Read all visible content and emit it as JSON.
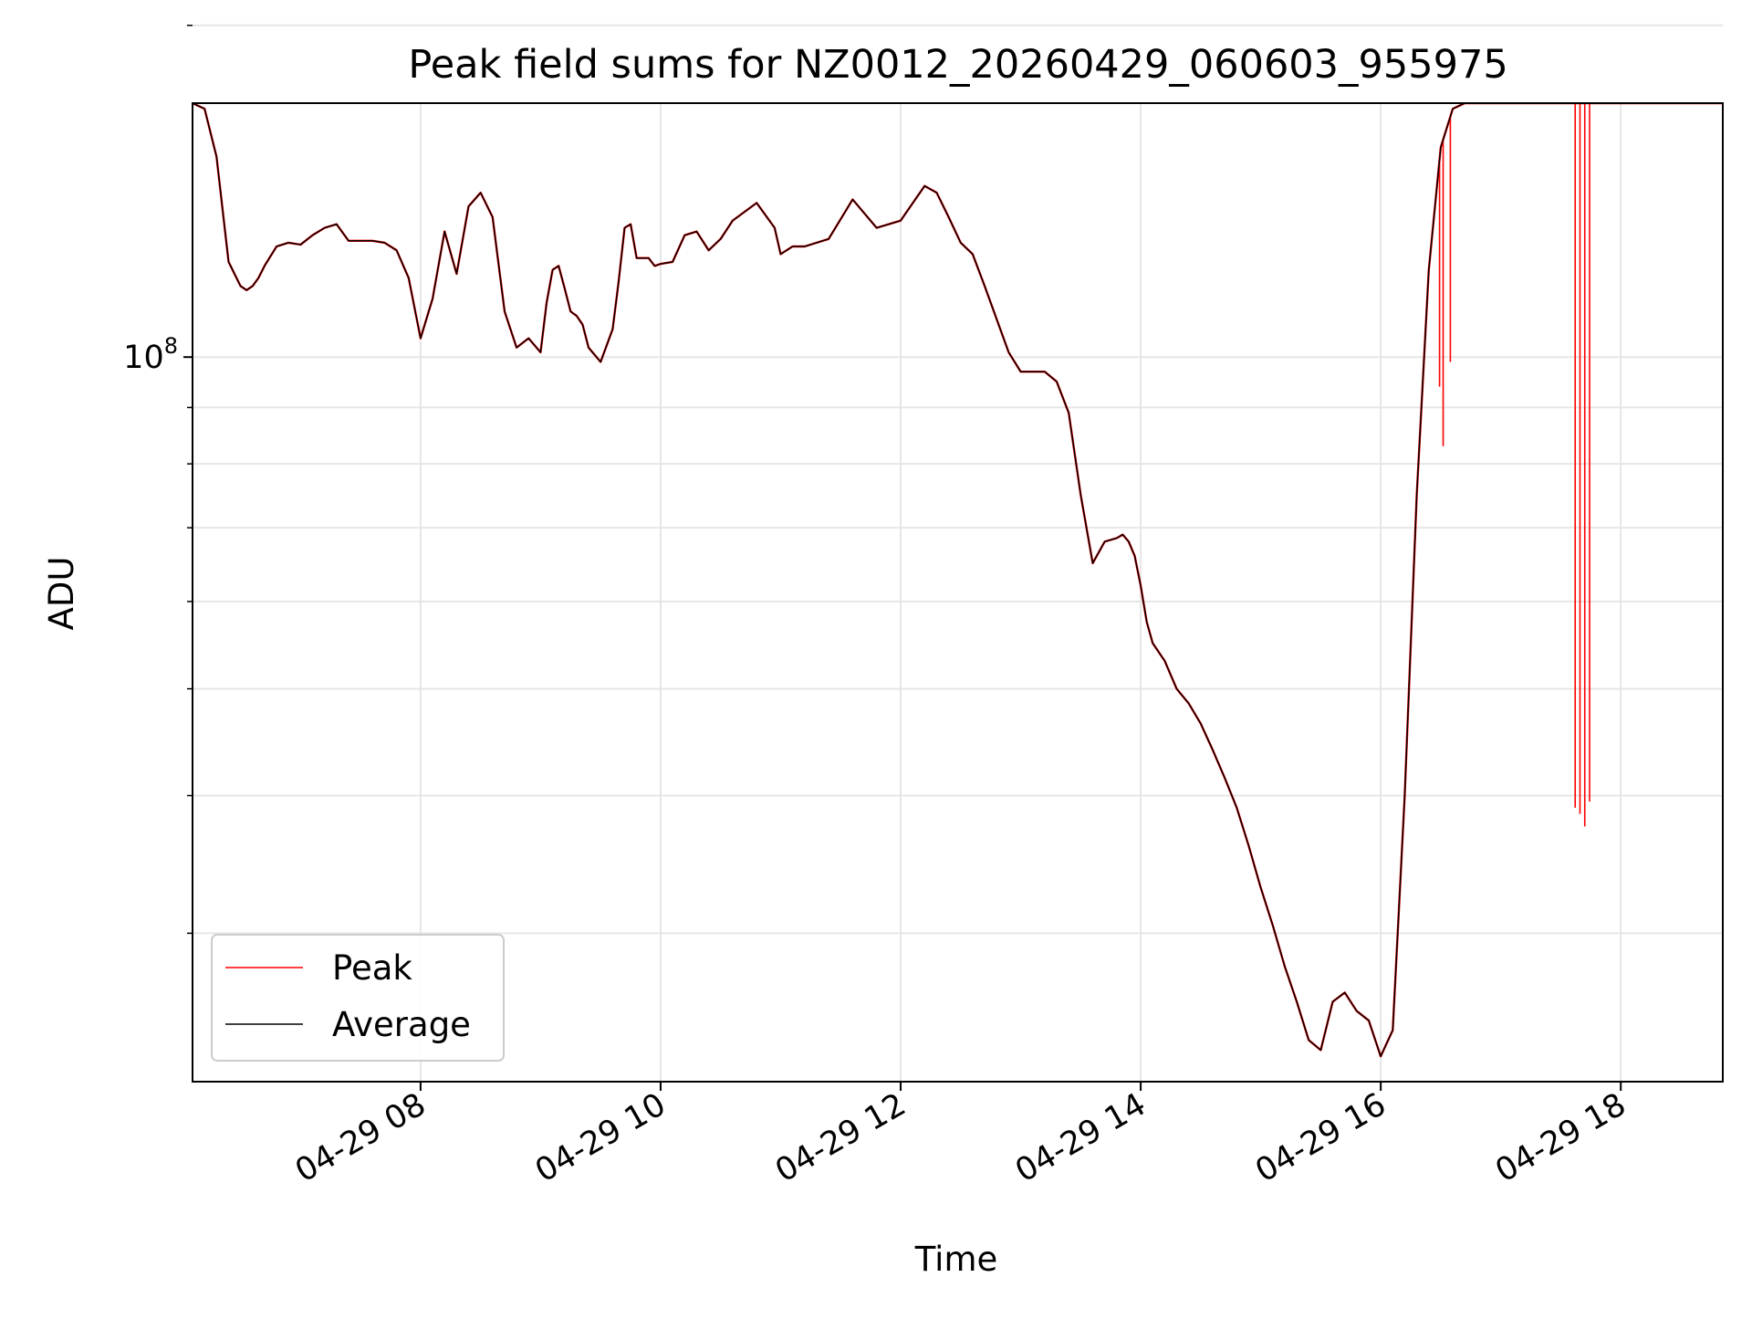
{
  "chart_data": {
    "type": "line",
    "title": "Peak field sums for NZ0012_20260429_060603_955975",
    "xlabel": "Time",
    "ylabel": "ADU",
    "x_unit": "hours since 2026-04-29 00:00",
    "xlim": [
      6.1,
      18.85
    ],
    "ylim": [
      22000000,
      170000000
    ],
    "yscale": "log",
    "x_ticks": [
      {
        "value": 8,
        "label": "04-29 08"
      },
      {
        "value": 10,
        "label": "04-29 10"
      },
      {
        "value": 12,
        "label": "04-29 12"
      },
      {
        "value": 14,
        "label": "04-29 14"
      },
      {
        "value": 16,
        "label": "04-29 16"
      },
      {
        "value": 18,
        "label": "04-29 18"
      }
    ],
    "y_major_ticks": [
      {
        "value": 100000000,
        "label_base": "10",
        "label_exp": "8"
      }
    ],
    "y_minor_ticks": [
      30000000,
      40000000,
      50000000,
      60000000,
      70000000,
      80000000,
      90000000,
      200000000
    ],
    "grid": true,
    "legend_position": "lower-left",
    "series": [
      {
        "name": "Peak",
        "color": "#ff0000",
        "spikes": [
          {
            "x": 16.49,
            "y": 94000000
          },
          {
            "x": 16.52,
            "y": 83000000
          },
          {
            "x": 16.58,
            "y": 99000000
          },
          {
            "x": 17.62,
            "y": 39000000
          },
          {
            "x": 17.66,
            "y": 38500000
          },
          {
            "x": 17.7,
            "y": 37500000
          },
          {
            "x": 17.74,
            "y": 39500000
          }
        ]
      },
      {
        "name": "Average",
        "color": "#000000",
        "x": [
          6.1,
          6.2,
          6.3,
          6.4,
          6.5,
          6.55,
          6.6,
          6.65,
          6.7,
          6.8,
          6.9,
          7.0,
          7.1,
          7.2,
          7.3,
          7.4,
          7.5,
          7.6,
          7.7,
          7.8,
          7.9,
          8.0,
          8.1,
          8.2,
          8.3,
          8.4,
          8.5,
          8.6,
          8.7,
          8.8,
          8.9,
          9.0,
          9.05,
          9.1,
          9.15,
          9.2,
          9.25,
          9.3,
          9.35,
          9.4,
          9.5,
          9.6,
          9.65,
          9.7,
          9.75,
          9.8,
          9.9,
          9.95,
          10.0,
          10.1,
          10.2,
          10.3,
          10.4,
          10.5,
          10.6,
          10.8,
          10.95,
          11.0,
          11.1,
          11.2,
          11.3,
          11.4,
          11.6,
          11.8,
          12.0,
          12.2,
          12.3,
          12.4,
          12.5,
          12.6,
          12.7,
          12.9,
          13.0,
          13.1,
          13.2,
          13.3,
          13.4,
          13.5,
          13.6,
          13.7,
          13.8,
          13.85,
          13.9,
          13.95,
          14.0,
          14.05,
          14.1,
          14.2,
          14.3,
          14.4,
          14.5,
          14.6,
          14.7,
          14.8,
          14.9,
          15.0,
          15.1,
          15.2,
          15.3,
          15.4,
          15.5,
          15.6,
          15.7,
          15.8,
          15.9,
          16.0,
          16.1,
          16.2,
          16.3,
          16.4,
          16.5,
          16.6,
          16.7,
          16.8,
          16.9,
          17.0,
          17.1,
          17.2,
          17.3,
          17.4,
          17.5,
          17.6,
          17.7,
          17.8,
          17.9,
          17.95,
          18.0,
          18.1,
          18.2,
          18.3,
          18.4,
          18.5,
          18.6,
          18.7,
          18.85
        ],
        "y": [
          170000000,
          168000000,
          152000000,
          122000000,
          116000000,
          115000000,
          116000000,
          118000000,
          121000000,
          126000000,
          127000000,
          126500000,
          129000000,
          131000000,
          132000000,
          127500000,
          127500000,
          127500000,
          127000000,
          125000000,
          118000000,
          104000000,
          113000000,
          130000000,
          119000000,
          137000000,
          141000000,
          134000000,
          110000000,
          102000000,
          104000000,
          101000000,
          112000000,
          120000000,
          121000000,
          115500000,
          110000000,
          109000000,
          107000000,
          102000000,
          99000000,
          106000000,
          117000000,
          131000000,
          132000000,
          123000000,
          123000000,
          121000000,
          121500000,
          122000000,
          129000000,
          130000000,
          125000000,
          128000000,
          133000000,
          138000000,
          131000000,
          124000000,
          126000000,
          126000000,
          127000000,
          128000000,
          139000000,
          131000000,
          133000000,
          143000000,
          141000000,
          134000000,
          127000000,
          124000000,
          116000000,
          101000000,
          97000000,
          97000000,
          97000000,
          95000000,
          89000000,
          75000000,
          65000000,
          68000000,
          68500000,
          69000000,
          68000000,
          66000000,
          62000000,
          57500000,
          55000000,
          53000000,
          50000000,
          48500000,
          46500000,
          44000000,
          41500000,
          39000000,
          36000000,
          33000000,
          30500000,
          28000000,
          26000000,
          24000000,
          23500000,
          26000000,
          26500000,
          25500000,
          25000000,
          23200000,
          24500000,
          40000000,
          75000000,
          120000000,
          155000000,
          168000000,
          170000000,
          170000000,
          170000000,
          170000000,
          170000000,
          170000000,
          170000000,
          170000000,
          170000000,
          170000000,
          170000000,
          170000000,
          170000000,
          170000000,
          170000000,
          170000000,
          170000000,
          170000000,
          170000000,
          170000000,
          170000000,
          170000000,
          170000000
        ]
      }
    ]
  }
}
